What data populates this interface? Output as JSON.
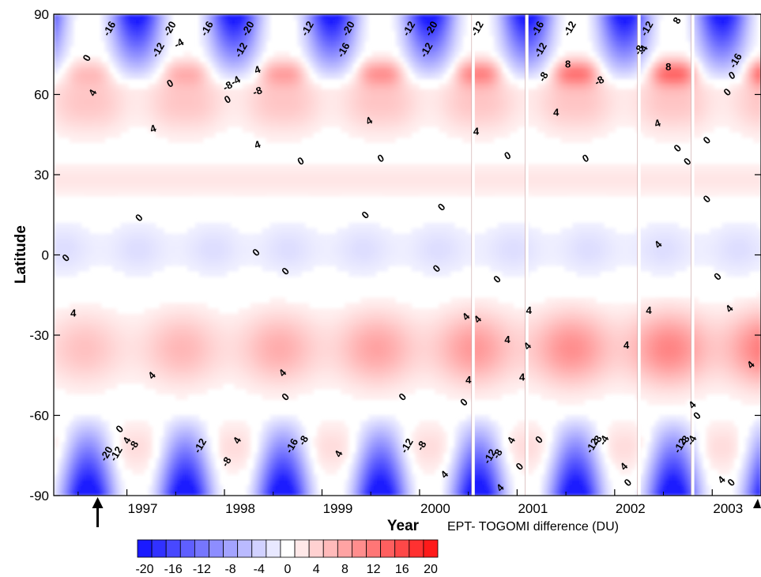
{
  "chart_data": {
    "type": "heatmap",
    "xlabel": "Year",
    "ylabel": "Latitude",
    "xlim": [
      1996.25,
      2003.5
    ],
    "ylim": [
      -90,
      90
    ],
    "x_ticks": [
      1997,
      1998,
      1999,
      2000,
      2001,
      2002,
      2003
    ],
    "y_ticks": [
      90,
      60,
      30,
      0,
      -30,
      -60,
      -90
    ],
    "gap_years": [
      2000.55,
      2001.1,
      2002.25,
      2002.8
    ],
    "arrow_year": 1996.7,
    "colorbar": {
      "label": "EPT- TOGOMI difference (DU)",
      "levels": [
        -20,
        -18,
        -16,
        -14,
        -12,
        -10,
        -8,
        -6,
        -4,
        -2,
        0,
        2,
        4,
        6,
        8,
        10,
        12,
        14,
        16,
        18,
        20
      ],
      "tick_labels": [
        -20,
        -16,
        -12,
        -8,
        -4,
        0,
        4,
        8,
        12,
        16,
        20
      ],
      "negative_color": "#1a1aff",
      "positive_color": "#ff1a1a"
    },
    "contour_labels": [
      {
        "text": "0",
        "year": 1996.62,
        "lat": 73,
        "angle": -60
      },
      {
        "text": "4",
        "year": 1996.68,
        "lat": 60,
        "angle": -60
      },
      {
        "text": "-16",
        "year": 1996.85,
        "lat": 84,
        "angle": -60
      },
      {
        "text": "-12",
        "year": 1997.35,
        "lat": 76,
        "angle": -60
      },
      {
        "text": "-20",
        "year": 1997.47,
        "lat": 84,
        "angle": -60
      },
      {
        "text": "-4",
        "year": 1997.55,
        "lat": 78,
        "angle": -30
      },
      {
        "text": "0",
        "year": 1997.46,
        "lat": 63,
        "angle": -30
      },
      {
        "text": "4",
        "year": 1997.28,
        "lat": 46,
        "angle": -20
      },
      {
        "text": "-16",
        "year": 1997.85,
        "lat": 84,
        "angle": -60
      },
      {
        "text": "-12",
        "year": 1998.2,
        "lat": 76,
        "angle": -60
      },
      {
        "text": "-20",
        "year": 1998.27,
        "lat": 84,
        "angle": -60
      },
      {
        "text": "-8",
        "year": 1998.05,
        "lat": 62,
        "angle": -30
      },
      {
        "text": "-4",
        "year": 1998.13,
        "lat": 64,
        "angle": -30
      },
      {
        "text": "0",
        "year": 1998.05,
        "lat": 57,
        "angle": -30
      },
      {
        "text": "4",
        "year": 1998.35,
        "lat": 68,
        "angle": -20
      },
      {
        "text": "-8",
        "year": 1998.35,
        "lat": 60,
        "angle": -20
      },
      {
        "text": "4",
        "year": 1998.35,
        "lat": 40,
        "angle": -20
      },
      {
        "text": "-12",
        "year": 1998.88,
        "lat": 84,
        "angle": -60
      },
      {
        "text": "-16",
        "year": 1999.25,
        "lat": 76,
        "angle": -60
      },
      {
        "text": "-20",
        "year": 1999.3,
        "lat": 84,
        "angle": -60
      },
      {
        "text": "0",
        "year": 1998.8,
        "lat": 34,
        "angle": -30
      },
      {
        "text": "4",
        "year": 1999.5,
        "lat": 49,
        "angle": -30
      },
      {
        "text": "0",
        "year": 1999.62,
        "lat": 35,
        "angle": -30
      },
      {
        "text": "-12",
        "year": 1999.92,
        "lat": 84,
        "angle": -60
      },
      {
        "text": "-12",
        "year": 2000.1,
        "lat": 76,
        "angle": -60
      },
      {
        "text": "-20",
        "year": 2000.15,
        "lat": 84,
        "angle": -60
      },
      {
        "text": "4",
        "year": 2000.58,
        "lat": 45,
        "angle": 0
      },
      {
        "text": "-12",
        "year": 2000.62,
        "lat": 84,
        "angle": -60
      },
      {
        "text": "0",
        "year": 2000.92,
        "lat": 36,
        "angle": -30
      },
      {
        "text": "-12",
        "year": 2001.27,
        "lat": 76,
        "angle": -60
      },
      {
        "text": "-8",
        "year": 2001.3,
        "lat": 66,
        "angle": -60
      },
      {
        "text": "-16",
        "year": 2001.24,
        "lat": 84,
        "angle": -60
      },
      {
        "text": "8",
        "year": 2001.52,
        "lat": 70,
        "angle": 0
      },
      {
        "text": "4",
        "year": 2001.4,
        "lat": 52,
        "angle": 0
      },
      {
        "text": "-12",
        "year": 2001.57,
        "lat": 84,
        "angle": -60
      },
      {
        "text": "-8",
        "year": 2001.86,
        "lat": 64,
        "angle": -30
      },
      {
        "text": "0",
        "year": 2001.72,
        "lat": 35,
        "angle": -30
      },
      {
        "text": "-4",
        "year": 2002.32,
        "lat": 76,
        "angle": -60
      },
      {
        "text": "-8",
        "year": 2002.28,
        "lat": 76,
        "angle": -60
      },
      {
        "text": "-12",
        "year": 2002.36,
        "lat": 84,
        "angle": -60
      },
      {
        "text": "8",
        "year": 2002.55,
        "lat": 69,
        "angle": 0
      },
      {
        "text": "4",
        "year": 2002.45,
        "lat": 48,
        "angle": -20
      },
      {
        "text": "8",
        "year": 2002.67,
        "lat": 87,
        "angle": -60
      },
      {
        "text": "0",
        "year": 2002.67,
        "lat": 39,
        "angle": -45
      },
      {
        "text": "0",
        "year": 2002.77,
        "lat": 34,
        "angle": -45
      },
      {
        "text": "0",
        "year": 2002.97,
        "lat": 42,
        "angle": -45
      },
      {
        "text": "0",
        "year": 2003.22,
        "lat": 66,
        "angle": -30
      },
      {
        "text": "-16",
        "year": 2003.27,
        "lat": 72,
        "angle": -60
      },
      {
        "text": "0",
        "year": 2003.18,
        "lat": 60,
        "angle": -45
      },
      {
        "text": "0",
        "year": 1997.15,
        "lat": 13,
        "angle": -45
      },
      {
        "text": "0",
        "year": 1996.4,
        "lat": -2,
        "angle": -45
      },
      {
        "text": "0",
        "year": 1998.35,
        "lat": 0,
        "angle": -45
      },
      {
        "text": "0",
        "year": 1998.65,
        "lat": -7,
        "angle": -45
      },
      {
        "text": "0",
        "year": 1999.47,
        "lat": 14,
        "angle": -45
      },
      {
        "text": "0",
        "year": 2000.25,
        "lat": 17,
        "angle": -45
      },
      {
        "text": "0",
        "year": 2000.2,
        "lat": -6,
        "angle": -45
      },
      {
        "text": "0",
        "year": 2000.82,
        "lat": -10,
        "angle": -45
      },
      {
        "text": "0",
        "year": 2002.97,
        "lat": 20,
        "angle": -45
      },
      {
        "text": "4",
        "year": 2002.47,
        "lat": 3,
        "angle": -45
      },
      {
        "text": "0",
        "year": 2003.08,
        "lat": -9,
        "angle": -45
      },
      {
        "text": "4",
        "year": 1996.45,
        "lat": -23,
        "angle": 0
      },
      {
        "text": "4",
        "year": 1997.28,
        "lat": -46,
        "angle": -45
      },
      {
        "text": "4",
        "year": 1998.62,
        "lat": -45,
        "angle": -45
      },
      {
        "text": "0",
        "year": 1998.65,
        "lat": -54,
        "angle": -45
      },
      {
        "text": "0",
        "year": 1999.85,
        "lat": -54,
        "angle": -45
      },
      {
        "text": "4",
        "year": 2000.5,
        "lat": -24,
        "angle": -45
      },
      {
        "text": "4",
        "year": 2000.62,
        "lat": -25,
        "angle": -45
      },
      {
        "text": "4",
        "year": 2000.5,
        "lat": -48,
        "angle": 0
      },
      {
        "text": "0",
        "year": 2000.48,
        "lat": -56,
        "angle": -45
      },
      {
        "text": "4",
        "year": 2000.9,
        "lat": -33,
        "angle": 0
      },
      {
        "text": "4",
        "year": 2001.12,
        "lat": -22,
        "angle": 0
      },
      {
        "text": "4",
        "year": 2001.13,
        "lat": -35,
        "angle": -45
      },
      {
        "text": "4",
        "year": 2001.05,
        "lat": -47,
        "angle": 0
      },
      {
        "text": "4",
        "year": 2002.35,
        "lat": -22,
        "angle": 0
      },
      {
        "text": "4",
        "year": 2002.12,
        "lat": -35,
        "angle": 0
      },
      {
        "text": "4",
        "year": 2003.2,
        "lat": -21,
        "angle": -45
      },
      {
        "text": "4",
        "year": 2003.42,
        "lat": -42,
        "angle": -45
      },
      {
        "text": "4",
        "year": 2002.82,
        "lat": -57,
        "angle": -45
      },
      {
        "text": "0",
        "year": 2002.87,
        "lat": -61,
        "angle": -45
      },
      {
        "text": "0",
        "year": 1996.95,
        "lat": -66,
        "angle": -45
      },
      {
        "text": "4",
        "year": 1997.03,
        "lat": -70,
        "angle": -60
      },
      {
        "text": "-8",
        "year": 1997.1,
        "lat": -72,
        "angle": -60
      },
      {
        "text": "-20",
        "year": 1996.82,
        "lat": -75,
        "angle": -60
      },
      {
        "text": "-12",
        "year": 1996.92,
        "lat": -75,
        "angle": -60
      },
      {
        "text": "-12",
        "year": 1997.78,
        "lat": -72,
        "angle": -60
      },
      {
        "text": "4",
        "year": 1998.16,
        "lat": -70,
        "angle": -60
      },
      {
        "text": "-8",
        "year": 1998.05,
        "lat": -78,
        "angle": -60
      },
      {
        "text": "-16",
        "year": 1998.72,
        "lat": -72,
        "angle": -60
      },
      {
        "text": "-8",
        "year": 1998.84,
        "lat": -70,
        "angle": -60
      },
      {
        "text": "4",
        "year": 1999.2,
        "lat": -75,
        "angle": -60
      },
      {
        "text": "-12",
        "year": 1999.9,
        "lat": -72,
        "angle": -60
      },
      {
        "text": "-8",
        "year": 2000.05,
        "lat": -72,
        "angle": -60
      },
      {
        "text": "4",
        "year": 2000.28,
        "lat": -83,
        "angle": -45
      },
      {
        "text": "-12",
        "year": 2000.75,
        "lat": -76,
        "angle": -60
      },
      {
        "text": "-8",
        "year": 2000.83,
        "lat": -75,
        "angle": -60
      },
      {
        "text": "4",
        "year": 2000.97,
        "lat": -70,
        "angle": -60
      },
      {
        "text": "4",
        "year": 2000.85,
        "lat": -88,
        "angle": -45
      },
      {
        "text": "0",
        "year": 2001.05,
        "lat": -80,
        "angle": -45
      },
      {
        "text": "0",
        "year": 2001.25,
        "lat": -70,
        "angle": -45
      },
      {
        "text": "-12",
        "year": 2001.8,
        "lat": -72,
        "angle": -60
      },
      {
        "text": "-8",
        "year": 2001.85,
        "lat": -70,
        "angle": -60
      },
      {
        "text": "-4",
        "year": 2001.92,
        "lat": -70,
        "angle": -60
      },
      {
        "text": "4",
        "year": 2002.12,
        "lat": -80,
        "angle": -45
      },
      {
        "text": "0",
        "year": 2002.16,
        "lat": -86,
        "angle": -45
      },
      {
        "text": "-12",
        "year": 2002.7,
        "lat": -72,
        "angle": -60
      },
      {
        "text": "-8",
        "year": 2002.75,
        "lat": -70,
        "angle": -60
      },
      {
        "text": "-4",
        "year": 2002.82,
        "lat": -70,
        "angle": -60
      },
      {
        "text": "4",
        "year": 2003.12,
        "lat": -85,
        "angle": -45
      },
      {
        "text": "0",
        "year": 2003.22,
        "lat": -86,
        "angle": -45
      }
    ]
  }
}
